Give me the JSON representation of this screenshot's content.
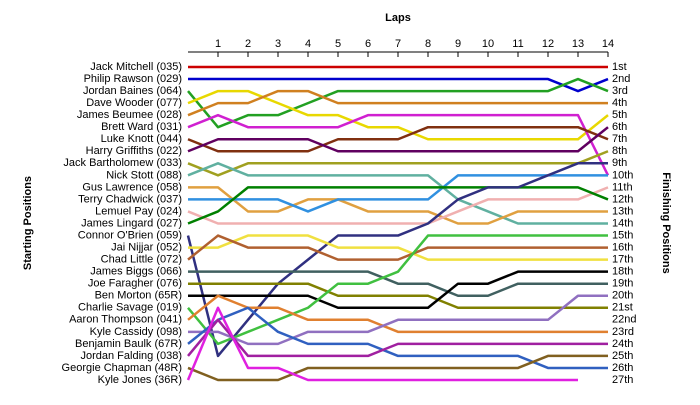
{
  "chart_data": {
    "type": "lap",
    "x_title": "Laps",
    "y_title": "Starting Positions",
    "y2_title": "Finishing Positions",
    "x": [
      0,
      1,
      2,
      3,
      4,
      5,
      6,
      7,
      8,
      9,
      10,
      11,
      12,
      13,
      14
    ],
    "xlim": [
      0,
      14
    ],
    "xticks": [
      1,
      2,
      3,
      4,
      5,
      6,
      7,
      8,
      9,
      10,
      11,
      12,
      13,
      14
    ],
    "ylim": [
      1,
      27
    ],
    "finishing_labels": [
      "1st",
      "2nd",
      "3rd",
      "4th",
      "5th",
      "6th",
      "7th",
      "8th",
      "9th",
      "10th",
      "11th",
      "12th",
      "13th",
      "14th",
      "15th",
      "16th",
      "17th",
      "18th",
      "19th",
      "20th",
      "21st",
      "22nd",
      "23rd",
      "24th",
      "25th",
      "26th",
      "27th"
    ],
    "series": [
      {
        "name": "Jack Mitchell (035)",
        "color": "#cc0000",
        "values": [
          1,
          1,
          1,
          1,
          1,
          1,
          1,
          1,
          1,
          1,
          1,
          1,
          1,
          1,
          1
        ]
      },
      {
        "name": "Philip Rawson (029)",
        "color": "#0000cc",
        "values": [
          2,
          2,
          2,
          2,
          2,
          2,
          2,
          2,
          2,
          2,
          2,
          2,
          2,
          3,
          2
        ]
      },
      {
        "name": "Jordan Baines (064)",
        "color": "#22a022",
        "values": [
          3,
          6,
          5,
          5,
          4,
          3,
          3,
          3,
          3,
          3,
          3,
          3,
          3,
          2,
          3
        ]
      },
      {
        "name": "Dave Wooder (077)",
        "color": "#e8d800",
        "values": [
          4,
          3,
          3,
          4,
          5,
          5,
          6,
          6,
          7,
          7,
          7,
          7,
          7,
          7,
          5
        ]
      },
      {
        "name": "James Beumee (028)",
        "color": "#d08020",
        "values": [
          5,
          4,
          4,
          3,
          3,
          4,
          4,
          4,
          4,
          4,
          4,
          4,
          4,
          4,
          4
        ]
      },
      {
        "name": "Brett Ward (031)",
        "color": "#d020d0",
        "values": [
          6,
          5,
          6,
          6,
          6,
          6,
          5,
          5,
          5,
          5,
          5,
          5,
          5,
          5,
          10
        ]
      },
      {
        "name": "Luke Knott (044)",
        "color": "#803010",
        "values": [
          7,
          8,
          8,
          8,
          8,
          7,
          7,
          7,
          6,
          6,
          6,
          6,
          6,
          6,
          7
        ]
      },
      {
        "name": "Harry Griffiths (022)",
        "color": "#600060",
        "values": [
          8,
          7,
          7,
          7,
          7,
          8,
          8,
          8,
          8,
          8,
          8,
          8,
          8,
          8,
          6
        ]
      },
      {
        "name": "Jack Bartholomew (033)",
        "color": "#a0a020",
        "values": [
          9,
          10,
          9,
          9,
          9,
          9,
          9,
          9,
          9,
          9,
          9,
          9,
          9,
          9,
          8
        ]
      },
      {
        "name": "Nick Stott (088)",
        "color": "#60b0a0",
        "values": [
          10,
          9,
          10,
          10,
          10,
          10,
          10,
          10,
          10,
          12,
          13,
          14,
          14,
          14,
          14
        ]
      },
      {
        "name": "Gus Lawrence (058)",
        "color": "#e0a040",
        "values": [
          11,
          11,
          13,
          13,
          12,
          12,
          13,
          13,
          13,
          14,
          14,
          13,
          13,
          13,
          13
        ]
      },
      {
        "name": "Terry Chadwick (037)",
        "color": "#3090e0",
        "values": [
          12,
          12,
          12,
          12,
          13,
          12,
          12,
          12,
          12,
          10,
          10,
          10,
          10,
          10,
          10
        ]
      },
      {
        "name": "Lemuel Pay (024)",
        "color": "#f0b0b0",
        "values": [
          13,
          14,
          14,
          14,
          14,
          14,
          14,
          14,
          14,
          13,
          12,
          12,
          12,
          12,
          11
        ]
      },
      {
        "name": "James Lingard (027)",
        "color": "#008000",
        "values": [
          14,
          13,
          11,
          11,
          11,
          11,
          11,
          11,
          11,
          11,
          11,
          11,
          11,
          11,
          12
        ]
      },
      {
        "name": "Connor O'Brien (059)",
        "color": "#303080",
        "values": [
          15,
          25,
          22,
          19,
          17,
          15,
          15,
          15,
          14,
          12,
          11,
          11,
          10,
          9,
          9
        ]
      },
      {
        "name": "Jai Nijjar (052)",
        "color": "#f0e040",
        "values": [
          16,
          16,
          15,
          15,
          15,
          16,
          16,
          16,
          17,
          17,
          17,
          17,
          17,
          17,
          17
        ]
      },
      {
        "name": "Chad Little (072)",
        "color": "#b06030",
        "values": [
          17,
          15,
          16,
          16,
          16,
          17,
          17,
          17,
          16,
          16,
          16,
          16,
          16,
          16,
          16
        ]
      },
      {
        "name": "James Biggs (066)",
        "color": "#406060",
        "values": [
          18,
          18,
          18,
          18,
          18,
          18,
          18,
          19,
          19,
          20,
          20,
          19,
          19,
          19,
          19
        ]
      },
      {
        "name": "Joe Faragher (076)",
        "color": "#808000",
        "values": [
          19,
          19,
          19,
          19,
          19,
          20,
          20,
          20,
          20,
          21,
          21,
          21,
          21,
          21,
          21
        ]
      },
      {
        "name": "Ben Morton (65R)",
        "color": "#000000",
        "values": [
          20,
          20,
          20,
          20,
          20,
          21,
          21,
          21,
          21,
          19,
          19,
          18,
          18,
          18,
          18
        ]
      },
      {
        "name": "Charlie Savage (019)",
        "color": "#40c040",
        "values": [
          21,
          24,
          23,
          22,
          21,
          19,
          19,
          18,
          15,
          15,
          15,
          15,
          15,
          15,
          15
        ]
      },
      {
        "name": "Aaron Thompson (041)",
        "color": "#e08030",
        "values": [
          22,
          20,
          21,
          21,
          22,
          22,
          22,
          23,
          23,
          23,
          23,
          23,
          23,
          23,
          23
        ]
      },
      {
        "name": "Kyle Cassidy (098)",
        "color": "#9070c0",
        "values": [
          23,
          23,
          24,
          24,
          23,
          23,
          23,
          22,
          22,
          22,
          22,
          22,
          22,
          20,
          20
        ]
      },
      {
        "name": "Benjamin Baulk (67R)",
        "color": "#3060c0",
        "values": [
          24,
          22,
          21,
          23,
          24,
          24,
          24,
          25,
          25,
          25,
          25,
          25,
          26,
          26,
          26
        ]
      },
      {
        "name": "Jordan Falding (038)",
        "color": "#a020a0",
        "values": [
          25,
          22,
          25,
          25,
          25,
          25,
          25,
          24,
          24,
          24,
          24,
          24,
          24,
          24,
          24
        ]
      },
      {
        "name": "Georgie Chapman (48R)",
        "color": "#806020",
        "values": [
          26,
          27,
          27,
          27,
          26,
          26,
          26,
          26,
          26,
          26,
          26,
          26,
          25,
          25,
          25
        ]
      },
      {
        "name": "Kyle Jones (36R)",
        "color": "#e020e0",
        "values": [
          27,
          21,
          26,
          26,
          27,
          27,
          27,
          27,
          27,
          27,
          27,
          27,
          27,
          27,
          null
        ]
      }
    ]
  }
}
